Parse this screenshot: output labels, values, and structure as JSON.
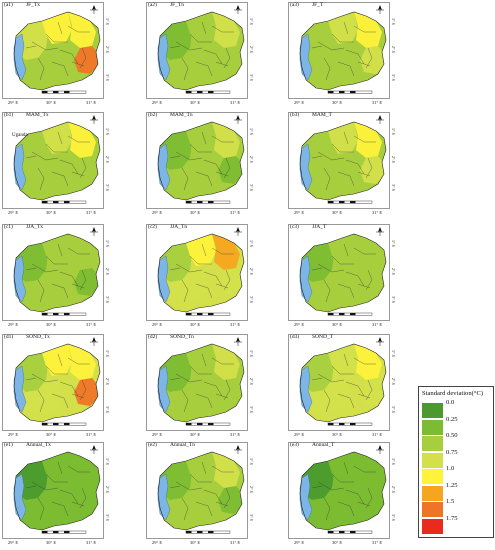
{
  "figure": {
    "colors": {
      "c0": "#4a9a2e",
      "c1": "#7cbc32",
      "c2": "#a7cf3d",
      "c3": "#d3e04a",
      "c4": "#fff23a",
      "c5": "#f5a51e",
      "c6": "#f07428",
      "c7": "#e82a1f",
      "lake": "#7db5e6"
    },
    "axes": {
      "x_ticks": [
        "29° E",
        "30° E",
        "31° E"
      ],
      "y_ticks": [
        "1° S",
        "2° S",
        "3° S"
      ]
    },
    "panels": [
      {
        "id": "(a1)",
        "title": "JF_Tx",
        "fill": [
          "c3",
          "c4",
          "c2",
          "c4",
          "c6"
        ]
      },
      {
        "id": "(a2)",
        "title": "JF_Tn",
        "fill": [
          "c1",
          "c2",
          "c2",
          "c3",
          "c2"
        ]
      },
      {
        "id": "(a3)",
        "title": "JF_T",
        "fill": [
          "c2",
          "c3",
          "c2",
          "c4",
          "c3"
        ]
      },
      {
        "id": "(b1)",
        "title": "MAM_Tx",
        "fill": [
          "c2",
          "c3",
          "c2",
          "c4",
          "c2"
        ],
        "region": "Uganda"
      },
      {
        "id": "(b2)",
        "title": "MAM_Tn",
        "fill": [
          "c1",
          "c2",
          "c2",
          "c3",
          "c1"
        ]
      },
      {
        "id": "(b3)",
        "title": "MAM_T",
        "fill": [
          "c2",
          "c3",
          "c2",
          "c4",
          "c3"
        ]
      },
      {
        "id": "(c1)",
        "title": "JJA_Tx",
        "fill": [
          "c1",
          "c2",
          "c2",
          "c2",
          "c1"
        ]
      },
      {
        "id": "(c2)",
        "title": "JJA_Tn",
        "fill": [
          "c2",
          "c4",
          "c3",
          "c5",
          "c3"
        ]
      },
      {
        "id": "(c3)",
        "title": "JJA_T",
        "fill": [
          "c1",
          "c2",
          "c2",
          "c2",
          "c2"
        ]
      },
      {
        "id": "(d1)",
        "title": "SOND_Tx",
        "fill": [
          "c2",
          "c4",
          "c3",
          "c4",
          "c6"
        ]
      },
      {
        "id": "(d2)",
        "title": "SOND_Tn",
        "fill": [
          "c1",
          "c2",
          "c2",
          "c3",
          "c2"
        ]
      },
      {
        "id": "(d3)",
        "title": "SOND_T",
        "fill": [
          "c2",
          "c3",
          "c3",
          "c4",
          "c3"
        ]
      },
      {
        "id": "(e1)",
        "title": "Annual_Tx",
        "fill": [
          "c0",
          "c1",
          "c1",
          "c1",
          "c1"
        ]
      },
      {
        "id": "(e2)",
        "title": "Annual_Tn",
        "fill": [
          "c1",
          "c2",
          "c2",
          "c3",
          "c1"
        ]
      },
      {
        "id": "(e3)",
        "title": "Annual_T",
        "fill": [
          "c0",
          "c1",
          "c1",
          "c1",
          "c1"
        ]
      }
    ],
    "legend": {
      "title": "Standard deviation(°C)",
      "entries": [
        {
          "label": "0.0",
          "color": "c0"
        },
        {
          "label": "0.25",
          "color": "c1"
        },
        {
          "label": "0.50",
          "color": "c2"
        },
        {
          "label": "0.75",
          "color": "c3"
        },
        {
          "label": "1.0",
          "color": "c4"
        },
        {
          "label": "1.25",
          "color": "c5"
        },
        {
          "label": "1.5",
          "color": "c6"
        },
        {
          "label": "1.75",
          "color": "c7"
        }
      ]
    }
  }
}
